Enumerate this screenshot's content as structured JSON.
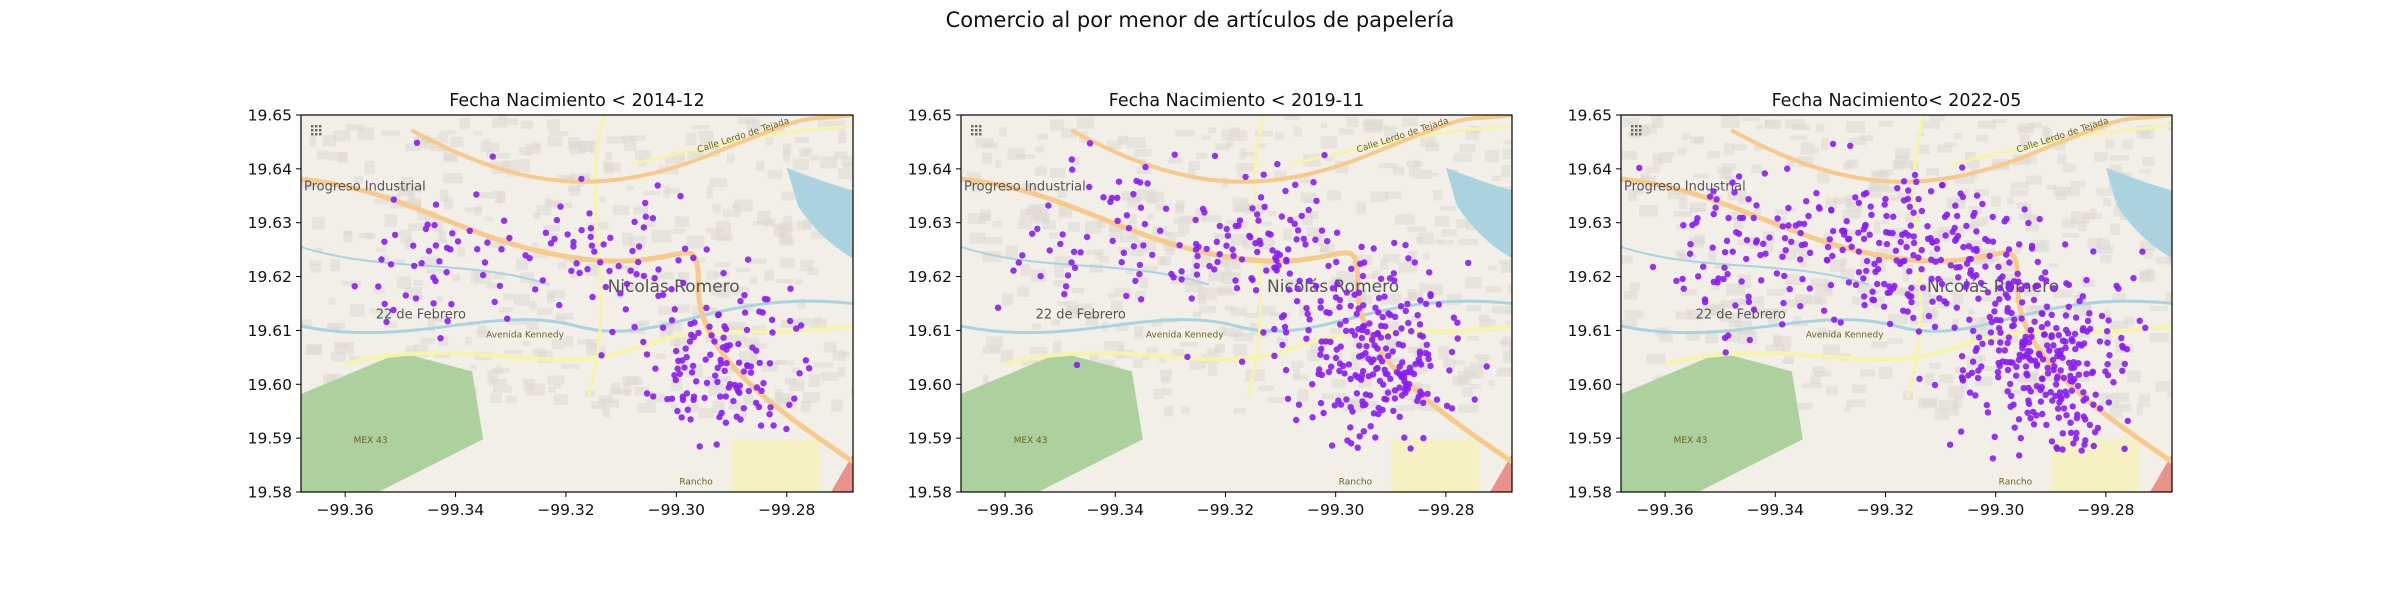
{
  "suptitle": "Comercio al por menor de artículos de papelería",
  "map_labels": {
    "town": "Nicolás Romero",
    "district_1": "Progreso Industrial",
    "district_2": "22 de Febrero",
    "road_1": "Calle Lerdo de Tejada",
    "road_2": "Avenida Kennedy",
    "road_3": "MEX 43",
    "place_1": "Rancho"
  },
  "colors": {
    "points": "#8a1cf5",
    "water": "#aad3df",
    "park": "#add19e",
    "land": "#f2efe9",
    "major_road": "#f7c98a",
    "secondary_road": "#f6f4a8"
  },
  "chart_data": [
    {
      "type": "scatter",
      "title": "Fecha Nacimiento < 2014-12",
      "xlim": [
        -99.368,
        -99.268
      ],
      "ylim": [
        19.58,
        19.65
      ],
      "xticks": [
        -99.36,
        -99.34,
        -99.32,
        -99.3,
        -99.28
      ],
      "xtick_labels": [
        "−99.36",
        "−99.34",
        "−99.32",
        "−99.30",
        "−99.28"
      ],
      "yticks": [
        19.58,
        19.59,
        19.6,
        19.61,
        19.62,
        19.63,
        19.64,
        19.65
      ],
      "ytick_labels": [
        "19.58",
        "19.59",
        "19.60",
        "19.61",
        "19.62",
        "19.63",
        "19.64",
        "19.65"
      ],
      "n_points": 230,
      "seed": 11
    },
    {
      "type": "scatter",
      "title": "Fecha Nacimiento < 2019-11",
      "xlim": [
        -99.368,
        -99.268
      ],
      "ylim": [
        19.58,
        19.65
      ],
      "xticks": [
        -99.36,
        -99.34,
        -99.32,
        -99.3,
        -99.28
      ],
      "xtick_labels": [
        "−99.36",
        "−99.34",
        "−99.32",
        "−99.30",
        "−99.28"
      ],
      "yticks": [
        19.58,
        19.59,
        19.6,
        19.61,
        19.62,
        19.63,
        19.64,
        19.65
      ],
      "ytick_labels": [
        "19.58",
        "19.59",
        "19.60",
        "19.61",
        "19.62",
        "19.63",
        "19.64",
        "19.65"
      ],
      "n_points": 380,
      "seed": 23
    },
    {
      "type": "scatter",
      "title": "Fecha Nacimiento< 2022-05",
      "xlim": [
        -99.368,
        -99.268
      ],
      "ylim": [
        19.58,
        19.65
      ],
      "xticks": [
        -99.36,
        -99.34,
        -99.32,
        -99.3,
        -99.28
      ],
      "xtick_labels": [
        "−99.36",
        "−99.34",
        "−99.32",
        "−99.30",
        "−99.28"
      ],
      "yticks": [
        19.58,
        19.59,
        19.6,
        19.61,
        19.62,
        19.63,
        19.64,
        19.65
      ],
      "ytick_labels": [
        "19.58",
        "19.59",
        "19.60",
        "19.61",
        "19.62",
        "19.63",
        "19.64",
        "19.65"
      ],
      "n_points": 560,
      "seed": 37
    }
  ]
}
